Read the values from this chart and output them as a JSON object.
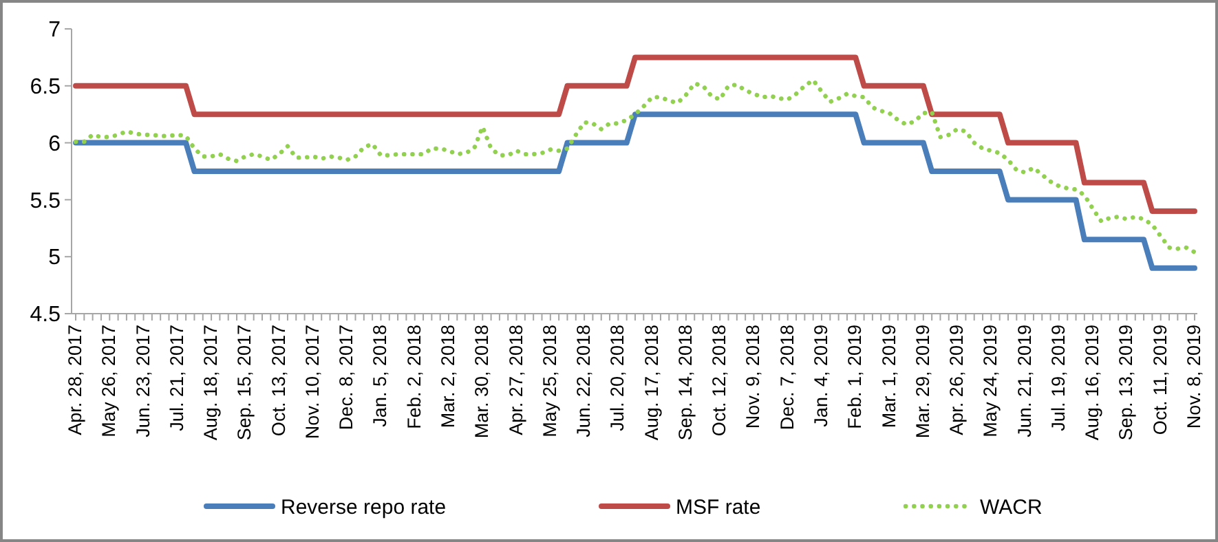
{
  "chart_data": {
    "type": "line",
    "categories": [
      "Apr. 28, 2017",
      null,
      null,
      null,
      "May 26, 2017",
      null,
      null,
      null,
      "Jun. 23, 2017",
      null,
      null,
      null,
      "Jul. 21, 2017",
      null,
      null,
      null,
      "Aug. 18, 2017",
      null,
      null,
      null,
      "Sep. 15, 2017",
      null,
      null,
      null,
      "Oct. 13, 2017",
      null,
      null,
      null,
      "Nov. 10, 2017",
      null,
      null,
      null,
      "Dec. 8, 2017",
      null,
      null,
      null,
      "Jan. 5, 2018",
      null,
      null,
      null,
      "Feb. 2, 2018",
      null,
      null,
      null,
      "Mar. 2, 2018",
      null,
      null,
      null,
      "Mar. 30, 2018",
      null,
      null,
      null,
      "Apr. 27, 2018",
      null,
      null,
      null,
      "May 25, 2018",
      null,
      null,
      null,
      "Jun. 22, 2018",
      null,
      null,
      null,
      "Jul. 20, 2018",
      null,
      null,
      null,
      "Aug. 17, 2018",
      null,
      null,
      null,
      "Sep. 14, 2018",
      null,
      null,
      null,
      "Oct. 12, 2018",
      null,
      null,
      null,
      "Nov. 9, 2018",
      null,
      null,
      null,
      "Dec. 7, 2018",
      null,
      null,
      null,
      "Jan. 4, 2019",
      null,
      null,
      null,
      "Feb. 1, 2019",
      null,
      null,
      null,
      "Mar. 1, 2019",
      null,
      null,
      null,
      "Mar. 29, 2019",
      null,
      null,
      null,
      "Apr. 26, 2019",
      null,
      null,
      null,
      "May 24, 2019",
      null,
      null,
      null,
      "Jun. 21, 2019",
      null,
      null,
      null,
      "Jul. 19, 2019",
      null,
      null,
      null,
      "Aug. 16, 2019",
      null,
      null,
      null,
      "Sep. 13, 2019",
      null,
      null,
      null,
      "Oct. 11, 2019",
      null,
      null,
      null,
      "Nov. 8, 2019"
    ],
    "series": [
      {
        "name": "Reverse repo rate",
        "color": "#4a7ebb",
        "line_style": "solid",
        "values": [
          6,
          6,
          6,
          6,
          6,
          6,
          6,
          6,
          6,
          6,
          6,
          6,
          6,
          6,
          5.75,
          5.75,
          5.75,
          5.75,
          5.75,
          5.75,
          5.75,
          5.75,
          5.75,
          5.75,
          5.75,
          5.75,
          5.75,
          5.75,
          5.75,
          5.75,
          5.75,
          5.75,
          5.75,
          5.75,
          5.75,
          5.75,
          5.75,
          5.75,
          5.75,
          5.75,
          5.75,
          5.75,
          5.75,
          5.75,
          5.75,
          5.75,
          5.75,
          5.75,
          5.75,
          5.75,
          5.75,
          5.75,
          5.75,
          5.75,
          5.75,
          5.75,
          5.75,
          5.75,
          6,
          6,
          6,
          6,
          6,
          6,
          6,
          6,
          6.25,
          6.25,
          6.25,
          6.25,
          6.25,
          6.25,
          6.25,
          6.25,
          6.25,
          6.25,
          6.25,
          6.25,
          6.25,
          6.25,
          6.25,
          6.25,
          6.25,
          6.25,
          6.25,
          6.25,
          6.25,
          6.25,
          6.25,
          6.25,
          6.25,
          6.25,
          6.25,
          6,
          6,
          6,
          6,
          6,
          6,
          6,
          6,
          5.75,
          5.75,
          5.75,
          5.75,
          5.75,
          5.75,
          5.75,
          5.75,
          5.75,
          5.5,
          5.5,
          5.5,
          5.5,
          5.5,
          5.5,
          5.5,
          5.5,
          5.5,
          5.15,
          5.15,
          5.15,
          5.15,
          5.15,
          5.15,
          5.15,
          5.15,
          4.9,
          4.9,
          4.9,
          4.9,
          4.9,
          4.9
        ]
      },
      {
        "name": "MSF rate",
        "color": "#be4b48",
        "line_style": "solid",
        "values": [
          6.5,
          6.5,
          6.5,
          6.5,
          6.5,
          6.5,
          6.5,
          6.5,
          6.5,
          6.5,
          6.5,
          6.5,
          6.5,
          6.5,
          6.25,
          6.25,
          6.25,
          6.25,
          6.25,
          6.25,
          6.25,
          6.25,
          6.25,
          6.25,
          6.25,
          6.25,
          6.25,
          6.25,
          6.25,
          6.25,
          6.25,
          6.25,
          6.25,
          6.25,
          6.25,
          6.25,
          6.25,
          6.25,
          6.25,
          6.25,
          6.25,
          6.25,
          6.25,
          6.25,
          6.25,
          6.25,
          6.25,
          6.25,
          6.25,
          6.25,
          6.25,
          6.25,
          6.25,
          6.25,
          6.25,
          6.25,
          6.25,
          6.25,
          6.5,
          6.5,
          6.5,
          6.5,
          6.5,
          6.5,
          6.5,
          6.5,
          6.75,
          6.75,
          6.75,
          6.75,
          6.75,
          6.75,
          6.75,
          6.75,
          6.75,
          6.75,
          6.75,
          6.75,
          6.75,
          6.75,
          6.75,
          6.75,
          6.75,
          6.75,
          6.75,
          6.75,
          6.75,
          6.75,
          6.75,
          6.75,
          6.75,
          6.75,
          6.75,
          6.5,
          6.5,
          6.5,
          6.5,
          6.5,
          6.5,
          6.5,
          6.5,
          6.25,
          6.25,
          6.25,
          6.25,
          6.25,
          6.25,
          6.25,
          6.25,
          6.25,
          6,
          6,
          6,
          6,
          6,
          6,
          6,
          6,
          6,
          5.65,
          5.65,
          5.65,
          5.65,
          5.65,
          5.65,
          5.65,
          5.65,
          5.4,
          5.4,
          5.4,
          5.4,
          5.4,
          5.4
        ]
      },
      {
        "name": "WACR",
        "color": "#92d050",
        "line_style": "dotted",
        "values": [
          6.01,
          6.01,
          6.07,
          6.05,
          6.05,
          6.07,
          6.1,
          6.08,
          6.07,
          6.07,
          6.06,
          6.06,
          6.07,
          6.06,
          5.95,
          5.88,
          5.88,
          5.9,
          5.86,
          5.84,
          5.88,
          5.9,
          5.88,
          5.85,
          5.9,
          5.97,
          5.87,
          5.87,
          5.88,
          5.86,
          5.88,
          5.87,
          5.85,
          5.88,
          5.96,
          5.99,
          5.89,
          5.89,
          5.9,
          5.9,
          5.9,
          5.9,
          5.95,
          5.95,
          5.93,
          5.9,
          5.91,
          5.95,
          6.14,
          5.95,
          5.89,
          5.89,
          5.93,
          5.9,
          5.9,
          5.91,
          5.94,
          5.93,
          5.95,
          6.07,
          6.18,
          6.17,
          6.12,
          6.17,
          6.17,
          6.2,
          6.25,
          6.32,
          6.4,
          6.4,
          6.37,
          6.35,
          6.42,
          6.52,
          6.5,
          6.41,
          6.38,
          6.5,
          6.51,
          6.46,
          6.43,
          6.4,
          6.41,
          6.39,
          6.38,
          6.43,
          6.5,
          6.55,
          6.45,
          6.36,
          6.39,
          6.43,
          6.41,
          6.4,
          6.31,
          6.28,
          6.26,
          6.2,
          6.16,
          6.19,
          6.26,
          6.27,
          6.05,
          6.07,
          6.12,
          6.1,
          6,
          5.95,
          5.93,
          5.91,
          5.85,
          5.76,
          5.74,
          5.78,
          5.72,
          5.66,
          5.62,
          5.6,
          5.59,
          5.54,
          5.42,
          5.31,
          5.34,
          5.35,
          5.33,
          5.35,
          5.33,
          5.28,
          5.18,
          5.08,
          5.07,
          5.08,
          5.04
        ]
      }
    ],
    "ylim": [
      4.5,
      7
    ],
    "yticks": [
      4.5,
      5,
      5.5,
      6,
      6.5,
      7
    ],
    "grid": false,
    "legend": "bottom"
  }
}
